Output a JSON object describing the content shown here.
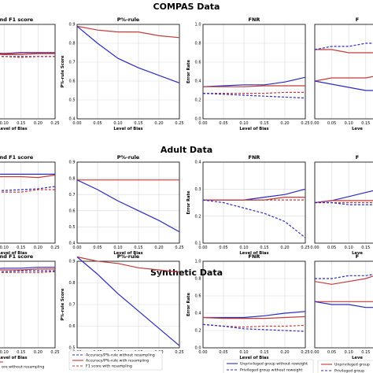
{
  "sections": [
    {
      "title": "COMPAS Data"
    },
    {
      "title": "Adult Data"
    },
    {
      "title": "Synthetic Data"
    }
  ],
  "colors": {
    "purple": "#6b1f6b",
    "red": "#c23b3b",
    "blue": "#2b2bbf",
    "grid": "#d9d9d9"
  },
  "legend_left": [
    {
      "label": "Accuracy/P%-rule without resampling",
      "color": "#2b2bbf",
      "dash": true
    },
    {
      "label": "Accuracy/P%-rule with resampling",
      "color": "#c23b3b",
      "dash": false
    },
    {
      "label": "F1 score with resampling",
      "color": "#c23b3b",
      "dash": true
    },
    {
      "label": "ore without resampling",
      "color": "#2b2bbf",
      "dash": false
    }
  ],
  "legend_fnr": [
    {
      "label": "Unprivileged group without reweight",
      "color": "#2b2bbf",
      "dash": false
    },
    {
      "label": "Privileged group without reweight",
      "color": "#2b2bbf",
      "dash": true
    }
  ],
  "legend_right": [
    {
      "label": "Unprivileged group",
      "color": "#c23b3b",
      "dash": false
    },
    {
      "label": "Privileged group",
      "color": "#2b2bbf",
      "dash": true
    }
  ],
  "chart_data": [
    {
      "type": "line",
      "section": "COMPAS Data",
      "title": "r and F1 score",
      "xlabel": "Level of Bias",
      "ylabel": "",
      "x": [
        0,
        0.05,
        0.1,
        0.15,
        0.2,
        0.25
      ],
      "xticks": [
        "0.00",
        "0.05",
        "0.10",
        "0.15",
        "0.20",
        "0.25"
      ],
      "ylim": [
        0,
        1
      ],
      "yticks": [],
      "series": [
        {
          "color": "#6b1f6b",
          "dash": false,
          "width": 1.6,
          "values": [
            0.7,
            0.7,
            0.69,
            0.7,
            0.7,
            0.7
          ]
        },
        {
          "color": "#c23b3b",
          "dash": false,
          "width": 1.2,
          "values": [
            0.68,
            0.69,
            0.68,
            0.68,
            0.69,
            0.69
          ]
        },
        {
          "color": "#2b2bbf",
          "dash": true,
          "width": 1.2,
          "values": [
            0.67,
            0.67,
            0.66,
            0.66,
            0.66,
            0.66
          ]
        },
        {
          "color": "#c23b3b",
          "dash": true,
          "width": 1.2,
          "values": [
            0.66,
            0.66,
            0.66,
            0.65,
            0.66,
            0.66
          ]
        }
      ]
    },
    {
      "type": "line",
      "section": "COMPAS Data",
      "title": "P%-rule",
      "xlabel": "Level of Bias",
      "ylabel": "P%-rule Score",
      "x": [
        0,
        0.05,
        0.1,
        0.15,
        0.2,
        0.25
      ],
      "xticks": [
        "0.00",
        "0.05",
        "0.10",
        "0.15",
        "0.20",
        "0.25"
      ],
      "ylim": [
        0.4,
        0.9
      ],
      "yticks": [
        0.4,
        0.5,
        0.6,
        0.7,
        0.8,
        0.9
      ],
      "series": [
        {
          "color": "#c23b3b",
          "dash": false,
          "width": 1.2,
          "values": [
            0.89,
            0.87,
            0.86,
            0.86,
            0.84,
            0.83
          ]
        },
        {
          "color": "#2b2bbf",
          "dash": false,
          "width": 1.2,
          "values": [
            0.89,
            0.8,
            0.72,
            0.67,
            0.63,
            0.59
          ]
        }
      ]
    },
    {
      "type": "line",
      "section": "COMPAS Data",
      "title": "FNR",
      "xlabel": "Level of Bias",
      "ylabel": "Error Rate",
      "x": [
        0,
        0.05,
        0.1,
        0.15,
        0.2,
        0.25
      ],
      "xticks": [
        "0.00",
        "0.05",
        "0.10",
        "0.15",
        "0.20",
        "0.25"
      ],
      "ylim": [
        0.0,
        1.0
      ],
      "yticks": [
        0.0,
        0.2,
        0.4,
        0.6,
        0.8,
        1.0
      ],
      "series": [
        {
          "color": "#2b2bbf",
          "dash": false,
          "width": 1.2,
          "values": [
            0.34,
            0.35,
            0.36,
            0.36,
            0.39,
            0.44
          ]
        },
        {
          "color": "#c23b3b",
          "dash": false,
          "width": 1.2,
          "values": [
            0.34,
            0.34,
            0.34,
            0.35,
            0.35,
            0.35
          ]
        },
        {
          "color": "#c23b3b",
          "dash": true,
          "width": 1.2,
          "values": [
            0.27,
            0.27,
            0.27,
            0.27,
            0.28,
            0.28
          ]
        },
        {
          "color": "#2b2bbf",
          "dash": true,
          "width": 1.2,
          "values": [
            0.27,
            0.26,
            0.25,
            0.24,
            0.23,
            0.22
          ]
        }
      ]
    },
    {
      "type": "line",
      "section": "COMPAS Data",
      "title": "F",
      "xlabel": "Leve",
      "ylabel": "",
      "x": [
        0,
        0.05,
        0.1,
        0.15,
        0.2,
        0.25
      ],
      "xticks": [
        "0.00",
        "0.05",
        "0.10",
        "0.15",
        "0.20",
        "0.25"
      ],
      "ylim": [
        0.2,
        0.5
      ],
      "yticks": [],
      "series": [
        {
          "color": "#c23b3b",
          "dash": false,
          "width": 1.2,
          "values": [
            0.42,
            0.42,
            0.41,
            0.41,
            0.41,
            0.41
          ]
        },
        {
          "color": "#2b2bbf",
          "dash": true,
          "width": 1.2,
          "values": [
            0.42,
            0.43,
            0.43,
            0.44,
            0.44,
            0.45
          ]
        },
        {
          "color": "#c23b3b",
          "dash": false,
          "width": 1.2,
          "values": [
            0.32,
            0.33,
            0.33,
            0.33,
            0.34,
            0.34
          ]
        },
        {
          "color": "#2b2bbf",
          "dash": false,
          "width": 1.2,
          "values": [
            0.32,
            0.31,
            0.3,
            0.29,
            0.29,
            0.28
          ]
        }
      ]
    },
    {
      "type": "line",
      "section": "Adult Data",
      "title": "r and F1 score",
      "xlabel": "Level of Bias",
      "ylabel": "",
      "x": [
        0,
        0.05,
        0.1,
        0.15,
        0.2,
        0.25
      ],
      "xticks": [
        "0.00",
        "0.05",
        "0.10",
        "0.15",
        "0.20",
        "0.25"
      ],
      "ylim": [
        0,
        1
      ],
      "yticks": [],
      "series": [
        {
          "color": "#2b2bbf",
          "dash": false,
          "width": 1.2,
          "values": [
            0.85,
            0.85,
            0.85,
            0.85,
            0.85,
            0.85
          ]
        },
        {
          "color": "#c23b3b",
          "dash": false,
          "width": 1.2,
          "values": [
            0.83,
            0.82,
            0.82,
            0.82,
            0.81,
            0.84
          ]
        },
        {
          "color": "#2b2bbf",
          "dash": true,
          "width": 1.2,
          "values": [
            0.65,
            0.65,
            0.65,
            0.66,
            0.67,
            0.7
          ]
        },
        {
          "color": "#c23b3b",
          "dash": true,
          "width": 1.2,
          "values": [
            0.63,
            0.63,
            0.63,
            0.63,
            0.66,
            0.66
          ]
        }
      ]
    },
    {
      "type": "line",
      "section": "Adult Data",
      "title": "P%-rule",
      "xlabel": "Level of Bias",
      "ylabel": "",
      "x": [
        0,
        0.05,
        0.1,
        0.15,
        0.2,
        0.25
      ],
      "xticks": [
        "0.00",
        "0.05",
        "0.10",
        "0.15",
        "0.20",
        "0.25"
      ],
      "ylim": [
        0.4,
        0.9
      ],
      "yticks": [
        0.4,
        0.5,
        0.6,
        0.7,
        0.8,
        0.9
      ],
      "series": [
        {
          "color": "#c23b3b",
          "dash": false,
          "width": 1.2,
          "values": [
            0.79,
            0.79,
            0.79,
            0.79,
            0.79,
            0.79
          ]
        },
        {
          "color": "#2b2bbf",
          "dash": false,
          "width": 1.2,
          "values": [
            0.79,
            0.73,
            0.66,
            0.6,
            0.54,
            0.47
          ]
        }
      ]
    },
    {
      "type": "line",
      "section": "Adult Data",
      "title": "FNR",
      "xlabel": "Level of Bias",
      "ylabel": "Error Rate",
      "x": [
        0,
        0.05,
        0.1,
        0.15,
        0.2,
        0.25
      ],
      "xticks": [
        "0.00",
        "0.05",
        "0.10",
        "0.15",
        "0.20",
        "0.25"
      ],
      "ylim": [
        0.1,
        0.4
      ],
      "yticks": [
        0.1,
        0.2,
        0.3,
        0.4
      ],
      "series": [
        {
          "color": "#2b2bbf",
          "dash": false,
          "width": 1.2,
          "values": [
            0.26,
            0.26,
            0.26,
            0.27,
            0.28,
            0.3
          ]
        },
        {
          "color": "#c23b3b",
          "dash": false,
          "width": 1.2,
          "values": [
            0.26,
            0.26,
            0.26,
            0.26,
            0.27,
            0.27
          ]
        },
        {
          "color": "#c23b3b",
          "dash": true,
          "width": 1.2,
          "values": [
            0.26,
            0.26,
            0.26,
            0.26,
            0.26,
            0.26
          ]
        },
        {
          "color": "#2b2bbf",
          "dash": true,
          "width": 1.2,
          "values": [
            0.26,
            0.25,
            0.23,
            0.21,
            0.18,
            0.12
          ]
        }
      ]
    },
    {
      "type": "line",
      "section": "Adult Data",
      "title": "F",
      "xlabel": "Leve",
      "ylabel": "",
      "x": [
        0,
        0.05,
        0.1,
        0.15,
        0.2,
        0.25
      ],
      "xticks": [
        "0.00",
        "0.05",
        "0.10",
        "0.15",
        "0.20",
        "0.25"
      ],
      "ylim": [
        0.1,
        0.5
      ],
      "yticks": [],
      "series": [
        {
          "color": "#2b2bbf",
          "dash": false,
          "width": 1.2,
          "values": [
            0.3,
            0.31,
            0.33,
            0.35,
            0.37,
            0.4
          ]
        },
        {
          "color": "#c23b3b",
          "dash": false,
          "width": 1.2,
          "values": [
            0.3,
            0.31,
            0.31,
            0.31,
            0.31,
            0.31
          ]
        },
        {
          "color": "#c23b3b",
          "dash": true,
          "width": 1.2,
          "values": [
            0.3,
            0.3,
            0.3,
            0.3,
            0.3,
            0.3
          ]
        },
        {
          "color": "#2b2bbf",
          "dash": true,
          "width": 1.2,
          "values": [
            0.3,
            0.3,
            0.29,
            0.29,
            0.29,
            0.29
          ]
        }
      ]
    },
    {
      "type": "line",
      "section": "Synthetic Data",
      "title": "r and F1 score",
      "xlabel": "Level of Bias",
      "ylabel": "",
      "x": [
        0,
        0.05,
        0.1,
        0.15,
        0.2,
        0.25
      ],
      "xticks": [
        "0.00",
        "0.05",
        "0.10",
        "0.15",
        "0.20",
        "0.25"
      ],
      "ylim": [
        0,
        1
      ],
      "yticks": [],
      "series": [
        {
          "color": "#2b2bbf",
          "dash": false,
          "width": 1.2,
          "values": [
            0.91,
            0.91,
            0.92,
            0.92,
            0.93,
            0.93
          ]
        },
        {
          "color": "#c23b3b",
          "dash": false,
          "width": 1.2,
          "values": [
            0.89,
            0.9,
            0.9,
            0.9,
            0.91,
            0.91
          ]
        },
        {
          "color": "#2b2bbf",
          "dash": true,
          "width": 1.2,
          "values": [
            0.88,
            0.88,
            0.88,
            0.89,
            0.89,
            0.89
          ]
        },
        {
          "color": "#c23b3b",
          "dash": true,
          "width": 1.2,
          "values": [
            0.87,
            0.87,
            0.87,
            0.87,
            0.87,
            0.88
          ]
        }
      ]
    },
    {
      "type": "line",
      "section": "Synthetic Data",
      "title": "P%-rule",
      "xlabel": "Level of Bias",
      "ylabel": "P%-rule Score",
      "x": [
        0,
        0.05,
        0.1,
        0.15,
        0.2,
        0.25
      ],
      "xticks": [
        "0.00",
        "0.05",
        "0.10",
        "0.15",
        "0.20",
        "0.25"
      ],
      "ylim": [
        0.5,
        0.9
      ],
      "yticks": [
        0.5,
        0.6,
        0.7,
        0.8,
        0.9
      ],
      "series": [
        {
          "color": "#c23b3b",
          "dash": false,
          "width": 1.2,
          "values": [
            0.92,
            0.9,
            0.89,
            0.87,
            0.86,
            0.85
          ]
        },
        {
          "color": "#2b2bbf",
          "dash": false,
          "width": 1.2,
          "values": [
            0.92,
            0.84,
            0.75,
            0.67,
            0.59,
            0.51
          ]
        }
      ]
    },
    {
      "type": "line",
      "section": "Synthetic Data",
      "title": "FNR",
      "xlabel": "Level of Bias",
      "ylabel": "Error Rate",
      "x": [
        0,
        0.05,
        0.1,
        0.15,
        0.2,
        0.25
      ],
      "xticks": [
        "0.00",
        "0.05",
        "0.10",
        "0.15",
        "0.20",
        "0.25"
      ],
      "ylim": [
        0.0,
        1.0
      ],
      "yticks": [
        0.0,
        0.2,
        0.4,
        0.6,
        0.8,
        1.0
      ],
      "series": [
        {
          "color": "#2b2bbf",
          "dash": false,
          "width": 1.2,
          "values": [
            0.35,
            0.35,
            0.35,
            0.37,
            0.4,
            0.42
          ]
        },
        {
          "color": "#c23b3b",
          "dash": false,
          "width": 1.2,
          "values": [
            0.35,
            0.34,
            0.34,
            0.34,
            0.35,
            0.36
          ]
        },
        {
          "color": "#c23b3b",
          "dash": true,
          "width": 1.2,
          "values": [
            0.27,
            0.25,
            0.24,
            0.25,
            0.25,
            0.26
          ]
        },
        {
          "color": "#2b2bbf",
          "dash": true,
          "width": 1.2,
          "values": [
            0.27,
            0.25,
            0.22,
            0.21,
            0.2,
            0.19
          ]
        }
      ]
    },
    {
      "type": "line",
      "section": "Synthetic Data",
      "title": "F",
      "xlabel": "Leve",
      "ylabel": "",
      "x": [
        0,
        0.05,
        0.1,
        0.15,
        0.2,
        0.25
      ],
      "xticks": [
        "0.00",
        "0.05",
        "0.10",
        "0.15",
        "0.20",
        "0.25"
      ],
      "ylim": [
        0.2,
        0.5
      ],
      "yticks": [],
      "series": [
        {
          "color": "#2b2bbf",
          "dash": true,
          "width": 1.2,
          "values": [
            0.44,
            0.44,
            0.45,
            0.45,
            0.46,
            0.47
          ]
        },
        {
          "color": "#c23b3b",
          "dash": false,
          "width": 1.2,
          "values": [
            0.43,
            0.42,
            0.43,
            0.44,
            0.46,
            0.47
          ]
        },
        {
          "color": "#c23b3b",
          "dash": false,
          "width": 1.2,
          "values": [
            0.36,
            0.36,
            0.36,
            0.36,
            0.36,
            0.36
          ]
        },
        {
          "color": "#2b2bbf",
          "dash": false,
          "width": 1.2,
          "values": [
            0.36,
            0.35,
            0.35,
            0.34,
            0.34,
            0.34
          ]
        }
      ]
    }
  ]
}
